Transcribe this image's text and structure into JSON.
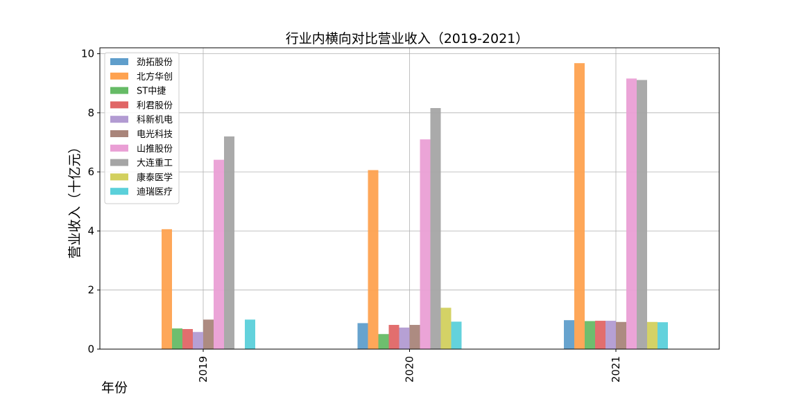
{
  "chart_data": {
    "type": "bar",
    "title": "行业内横向对比营业收入（2019-2021）",
    "xlabel": "年份",
    "ylabel": "营业收入（十亿元）",
    "categories": [
      "2019",
      "2020",
      "2021"
    ],
    "ylim": [
      0,
      10.2
    ],
    "yticks": [
      0,
      2,
      4,
      6,
      8,
      10
    ],
    "grid": true,
    "legend_position": "top-left",
    "series": [
      {
        "name": "劲拓股份",
        "color": "#5f9ecb",
        "values": [
          null,
          0.88,
          0.98
        ]
      },
      {
        "name": "北方华创",
        "color": "#fea250",
        "values": [
          4.06,
          6.06,
          9.68
        ]
      },
      {
        "name": "ST中捷",
        "color": "#66bb66",
        "values": [
          0.7,
          0.51,
          0.95
        ]
      },
      {
        "name": "利君股份",
        "color": "#e06666",
        "values": [
          0.68,
          0.82,
          0.96
        ]
      },
      {
        "name": "科新机电",
        "color": "#b29bd2",
        "values": [
          0.58,
          0.73,
          0.96
        ]
      },
      {
        "name": "电光科技",
        "color": "#a9857a",
        "values": [
          1.0,
          0.82,
          0.92
        ]
      },
      {
        "name": "山推股份",
        "color": "#ea9fd5",
        "values": [
          6.41,
          7.1,
          9.16
        ]
      },
      {
        "name": "大连重工",
        "color": "#a5a5a5",
        "values": [
          7.2,
          8.16,
          9.11
        ]
      },
      {
        "name": "康泰医学",
        "color": "#d2d05e",
        "values": [
          null,
          1.4,
          0.92
        ]
      },
      {
        "name": "迪瑞医疗",
        "color": "#5bd0da",
        "values": [
          1.0,
          0.93,
          0.91
        ]
      }
    ]
  }
}
